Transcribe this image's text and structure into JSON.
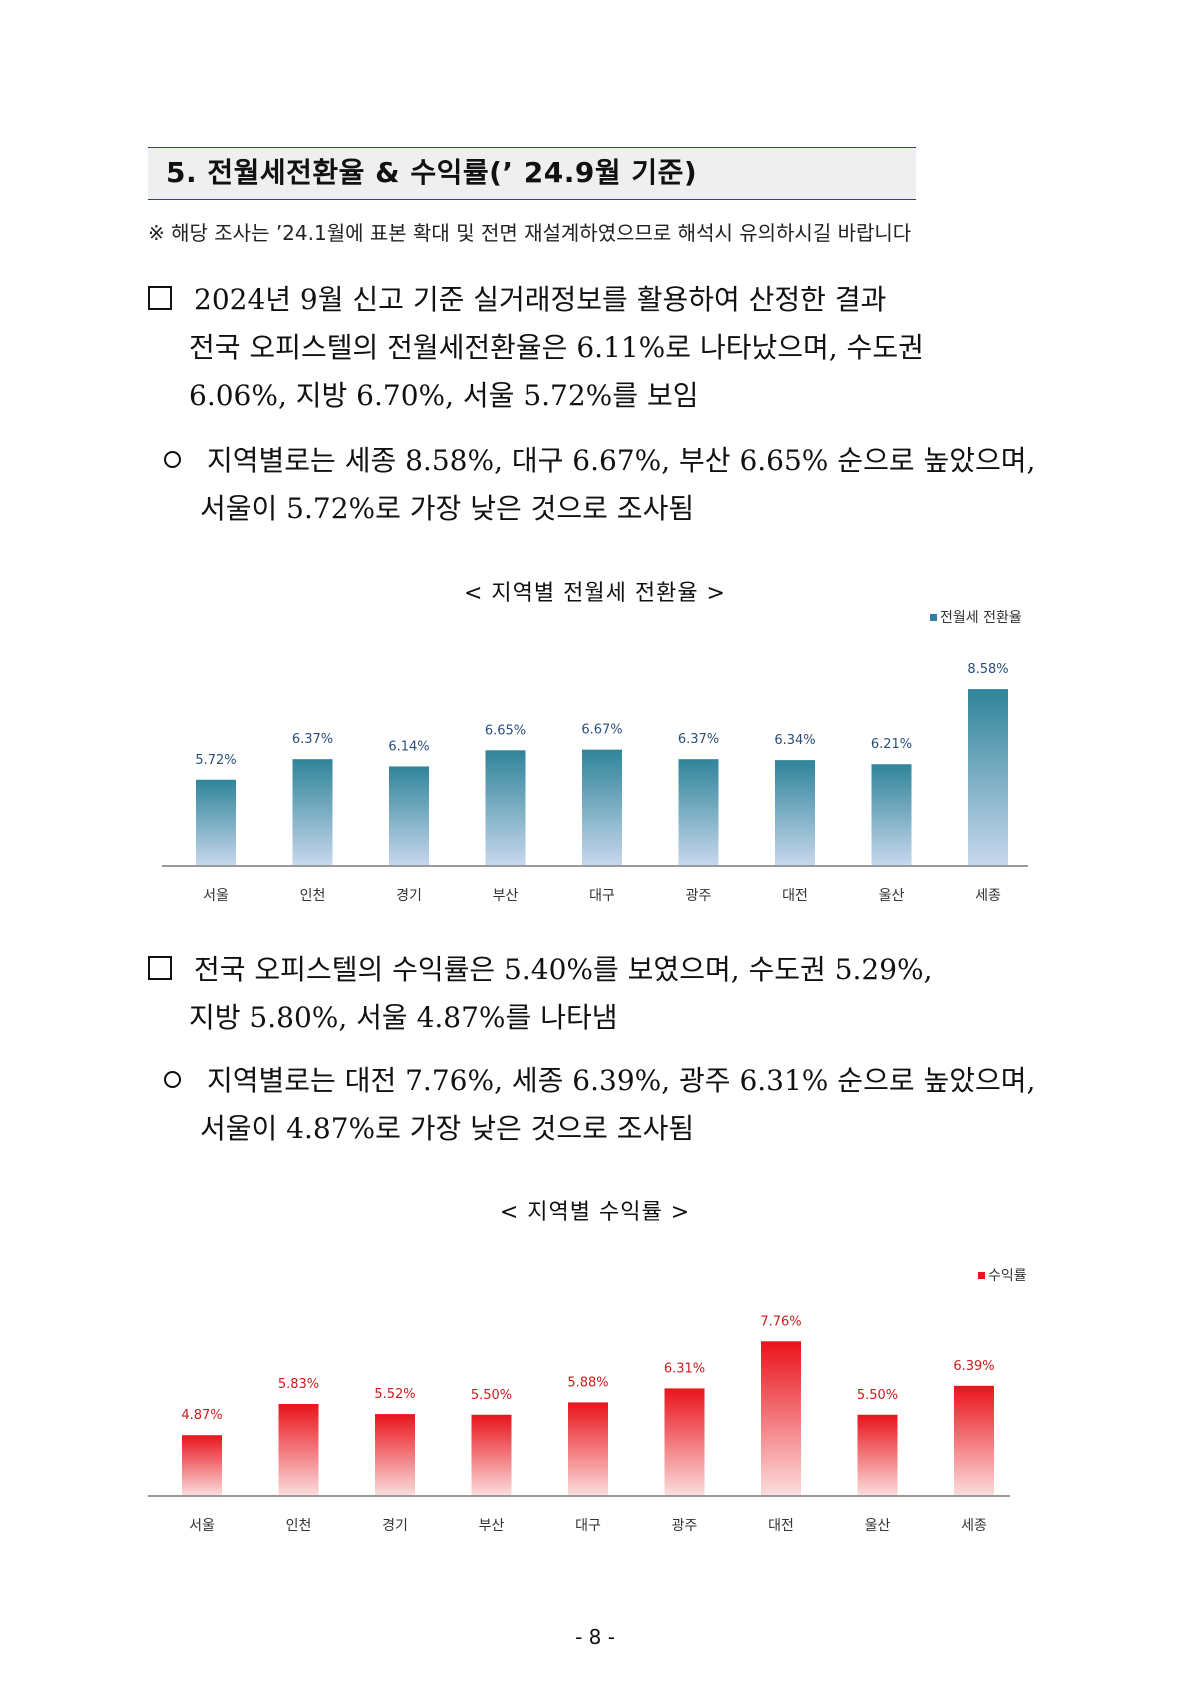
{
  "section": {
    "title": "5. 전월세전환율 & 수익률(’ 24.9월 기준)",
    "notice": "※ 해당 조사는 ’24.1월에 표본 확대 및 전면 재설계하였으므로 해석시 유의하시길 바랍니다"
  },
  "paragraphs": {
    "p1": [
      "2024년 9월 신고 기준 실거래정보를 활용하여 산정한 결과",
      "전국 오피스텔의 전월세전환율은 6.11%로 나타났으며, 수도권",
      "6.06%, 지방 6.70%, 서울 5.72%를 보임"
    ],
    "p1_sub": [
      "지역별로는 세종 8.58%, 대구 6.67%, 부산 6.65% 순으로 높았으며,",
      "서울이 5.72%로 가장 낮은 것으로 조사됨"
    ],
    "p2": [
      "전국 오피스텔의 수익률은 5.40%를 보였으며, 수도권 5.29%,",
      "지방 5.80%, 서울 4.87%를 나타냄"
    ],
    "p2_sub": [
      "지역별로는 대전 7.76%, 세종 6.39%, 광주 6.31% 순으로 높았으며,",
      "서울이 4.87%로 가장 낮은 것으로 조사됨"
    ]
  },
  "chart_data": [
    {
      "type": "bar",
      "title": "< 지역별 전월세 전환율 >",
      "categories": [
        "서울",
        "인천",
        "경기",
        "부산",
        "대구",
        "광주",
        "대전",
        "울산",
        "세종"
      ],
      "series": [
        {
          "name": "전월세 전환율",
          "values": [
            5.72,
            6.37,
            6.14,
            6.65,
            6.67,
            6.37,
            6.34,
            6.21,
            8.58
          ]
        }
      ],
      "value_labels": [
        "5.72%",
        "6.37%",
        "6.14%",
        "6.65%",
        "6.67%",
        "6.37%",
        "6.34%",
        "6.21%",
        "8.58%"
      ],
      "legend_position": "top-right",
      "color": "#2f7fa6",
      "grid": false
    },
    {
      "type": "bar",
      "title": "< 지역별 수익률 >",
      "categories": [
        "서울",
        "인천",
        "경기",
        "부산",
        "대구",
        "광주",
        "대전",
        "울산",
        "세종"
      ],
      "series": [
        {
          "name": "수익률",
          "values": [
            4.87,
            5.83,
            5.52,
            5.5,
            5.88,
            6.31,
            7.76,
            5.5,
            6.39
          ]
        }
      ],
      "value_labels": [
        "4.87%",
        "5.83%",
        "5.52%",
        "5.50%",
        "5.88%",
        "6.31%",
        "7.76%",
        "5.50%",
        "6.39%"
      ],
      "legend_position": "top-right",
      "color": "#e8161c",
      "grid": false
    }
  ],
  "page_number": "- 8 -"
}
